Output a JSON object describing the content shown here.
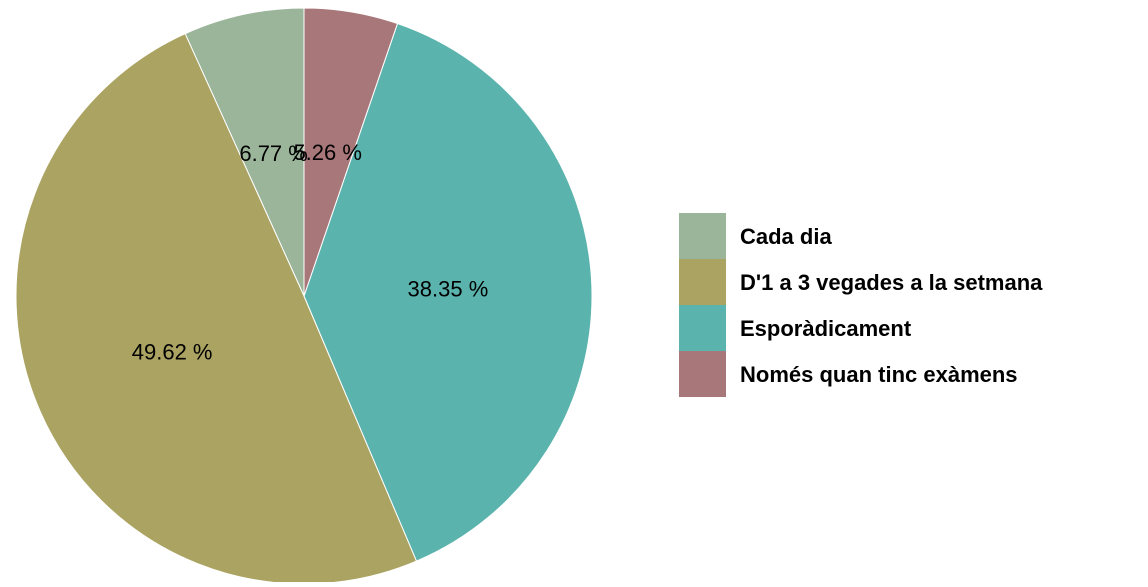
{
  "chart_data": {
    "type": "pie",
    "categories": [
      "Cada dia",
      "D'1 a 3 vegades a la setmana",
      "Esporàdicament",
      "Només quan tinc exàmens"
    ],
    "values": [
      6.77,
      49.62,
      38.35,
      5.26
    ],
    "value_labels": [
      "6.77 %",
      "49.62 %",
      "38.35 %",
      "5.26 %"
    ],
    "colors": [
      "#9bb59a",
      "#aba361",
      "#5bb3ad",
      "#a8777a"
    ],
    "start_angle": 90,
    "direction": "counterclockwise",
    "legend": "right"
  }
}
